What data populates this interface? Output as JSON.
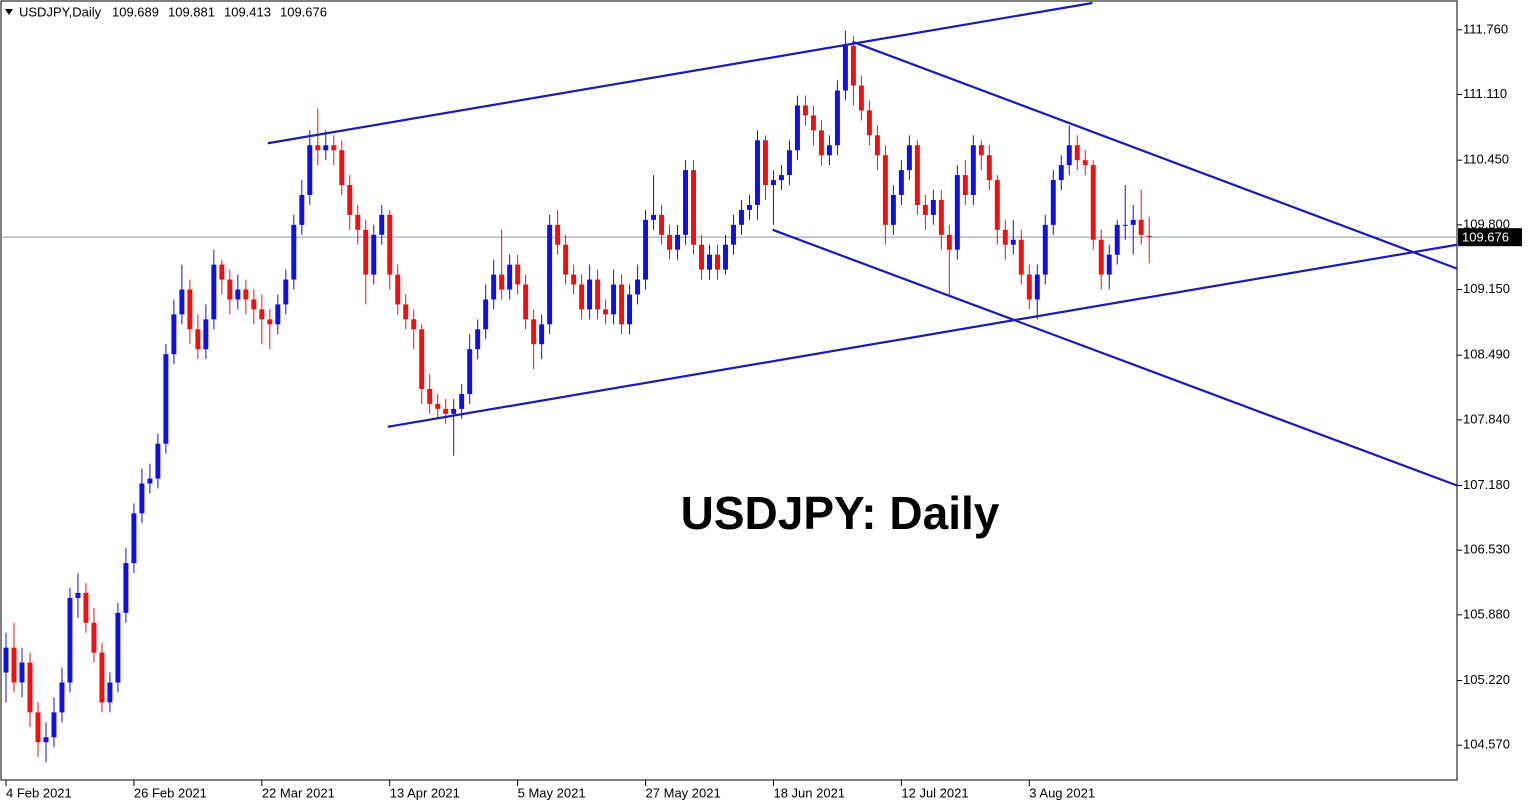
{
  "chart_data": {
    "type": "candlestick",
    "symbol": "USDJPY,Daily",
    "annotation": "USDJPY: Daily",
    "up_color": "#1111dd",
    "down_color": "#ee1111",
    "trendline_color": "#1a1ab4",
    "price_line_color": "#8a9aa6",
    "xlim": [
      -0.625,
      181.5
    ],
    "ylim": [
      104.22,
      112.06
    ],
    "xticks": [
      {
        "value": 0,
        "label": "4 Feb 2021"
      },
      {
        "value": 16,
        "label": "26 Feb 2021"
      },
      {
        "value": 32,
        "label": "22 Mar 2021"
      },
      {
        "value": 48,
        "label": "13 Apr 2021"
      },
      {
        "value": 64,
        "label": "5 May 2021"
      },
      {
        "value": 80,
        "label": "27 May 2021"
      },
      {
        "value": 96,
        "label": "18 Jun 2021"
      },
      {
        "value": 112,
        "label": "12 Jul 2021"
      },
      {
        "value": 128,
        "label": "3 Aug 2021"
      }
    ],
    "yticks": [
      {
        "value": 111.76,
        "label": "111.760"
      },
      {
        "value": 111.11,
        "label": "111.110"
      },
      {
        "value": 110.45,
        "label": "110.450"
      },
      {
        "value": 109.8,
        "label": "109.800"
      },
      {
        "value": 109.15,
        "label": "109.150"
      },
      {
        "value": 108.49,
        "label": "108.490"
      },
      {
        "value": 107.84,
        "label": "107.840"
      },
      {
        "value": 107.18,
        "label": "107.180"
      },
      {
        "value": 106.53,
        "label": "106.530"
      },
      {
        "value": 105.88,
        "label": "105.880"
      },
      {
        "value": 105.22,
        "label": "105.220"
      },
      {
        "value": 104.57,
        "label": "104.570"
      }
    ],
    "trendlines": [
      [
        [
          32.75,
          110.62
        ],
        [
          135.9,
          112.03
        ]
      ],
      [
        [
          47.75,
          107.77
        ],
        [
          181.5,
          109.6
        ]
      ],
      [
        [
          105.9,
          111.64
        ],
        [
          181.5,
          109.36
        ]
      ],
      [
        [
          95.9,
          109.75
        ],
        [
          181.5,
          107.18
        ]
      ]
    ],
    "candles": [
      [
        105.3,
        105.7,
        105.0,
        105.55
      ],
      [
        105.55,
        105.8,
        105.1,
        105.2
      ],
      [
        105.2,
        105.55,
        105.05,
        105.4
      ],
      [
        105.4,
        105.5,
        104.75,
        104.9
      ],
      [
        104.9,
        105.0,
        104.45,
        104.6
      ],
      [
        104.6,
        104.8,
        104.4,
        104.65
      ],
      [
        104.65,
        105.05,
        104.55,
        104.9
      ],
      [
        104.9,
        105.35,
        104.8,
        105.2
      ],
      [
        105.2,
        106.15,
        105.1,
        106.05
      ],
      [
        106.05,
        106.3,
        105.85,
        106.1
      ],
      [
        106.1,
        106.2,
        105.7,
        105.8
      ],
      [
        105.8,
        105.95,
        105.4,
        105.5
      ],
      [
        105.5,
        105.6,
        104.9,
        105.0
      ],
      [
        105.0,
        105.3,
        104.9,
        105.2
      ],
      [
        105.2,
        106.0,
        105.1,
        105.9
      ],
      [
        105.9,
        106.55,
        105.8,
        106.4
      ],
      [
        106.4,
        107.0,
        106.3,
        106.9
      ],
      [
        106.9,
        107.35,
        106.8,
        107.2
      ],
      [
        107.2,
        107.4,
        107.1,
        107.25
      ],
      [
        107.25,
        107.7,
        107.15,
        107.6
      ],
      [
        107.6,
        108.6,
        107.5,
        108.5
      ],
      [
        108.5,
        109.05,
        108.4,
        108.9
      ],
      [
        108.9,
        109.4,
        108.8,
        109.15
      ],
      [
        109.15,
        109.25,
        108.6,
        108.75
      ],
      [
        108.75,
        108.9,
        108.45,
        108.55
      ],
      [
        108.55,
        109.0,
        108.45,
        108.85
      ],
      [
        108.85,
        109.55,
        108.75,
        109.4
      ],
      [
        109.4,
        109.45,
        109.1,
        109.25
      ],
      [
        109.25,
        109.35,
        108.9,
        109.05
      ],
      [
        109.05,
        109.3,
        108.95,
        109.15
      ],
      [
        109.15,
        109.25,
        108.9,
        109.05
      ],
      [
        109.05,
        109.15,
        108.8,
        108.95
      ],
      [
        108.95,
        109.1,
        108.6,
        108.85
      ],
      [
        108.85,
        108.95,
        108.55,
        108.8
      ],
      [
        108.8,
        109.1,
        108.7,
        109.0
      ],
      [
        109.0,
        109.35,
        108.9,
        109.25
      ],
      [
        109.25,
        109.9,
        109.15,
        109.8
      ],
      [
        109.8,
        110.25,
        109.7,
        110.1
      ],
      [
        110.1,
        110.75,
        110.0,
        110.6
      ],
      [
        110.6,
        110.97,
        110.4,
        110.55
      ],
      [
        110.55,
        110.75,
        110.45,
        110.6
      ],
      [
        110.6,
        110.7,
        110.4,
        110.55
      ],
      [
        110.55,
        110.65,
        110.1,
        110.2
      ],
      [
        110.2,
        110.3,
        109.75,
        109.9
      ],
      [
        109.9,
        110.0,
        109.6,
        109.75
      ],
      [
        109.75,
        109.85,
        109.0,
        109.3
      ],
      [
        109.3,
        109.8,
        109.2,
        109.7
      ],
      [
        109.7,
        110.0,
        109.6,
        109.9
      ],
      [
        109.9,
        109.95,
        109.15,
        109.3
      ],
      [
        109.3,
        109.4,
        108.9,
        109.0
      ],
      [
        109.0,
        109.1,
        108.75,
        108.85
      ],
      [
        108.85,
        108.95,
        108.55,
        108.75
      ],
      [
        108.75,
        108.8,
        108.0,
        108.15
      ],
      [
        108.15,
        108.3,
        107.9,
        108.0
      ],
      [
        108.0,
        108.1,
        107.85,
        107.95
      ],
      [
        107.95,
        108.05,
        107.8,
        107.9
      ],
      [
        107.9,
        108.05,
        107.48,
        107.95
      ],
      [
        107.95,
        108.2,
        107.85,
        108.1
      ],
      [
        108.1,
        108.7,
        108.0,
        108.55
      ],
      [
        108.55,
        108.85,
        108.45,
        108.75
      ],
      [
        108.75,
        109.2,
        108.65,
        109.05
      ],
      [
        109.05,
        109.45,
        108.95,
        109.3
      ],
      [
        109.3,
        109.75,
        109.05,
        109.15
      ],
      [
        109.15,
        109.5,
        109.05,
        109.4
      ],
      [
        109.4,
        109.5,
        109.1,
        109.2
      ],
      [
        109.2,
        109.3,
        108.75,
        108.85
      ],
      [
        108.85,
        108.95,
        108.35,
        108.6
      ],
      [
        108.6,
        108.9,
        108.45,
        108.8
      ],
      [
        108.8,
        109.9,
        108.7,
        109.8
      ],
      [
        109.8,
        109.95,
        109.5,
        109.6
      ],
      [
        109.6,
        109.7,
        109.2,
        109.3
      ],
      [
        109.3,
        109.4,
        109.1,
        109.2
      ],
      [
        109.2,
        109.3,
        108.85,
        108.95
      ],
      [
        108.95,
        109.4,
        108.85,
        109.25
      ],
      [
        109.25,
        109.35,
        108.85,
        108.95
      ],
      [
        108.95,
        109.05,
        108.8,
        108.9
      ],
      [
        108.9,
        109.35,
        108.8,
        109.2
      ],
      [
        109.2,
        109.3,
        108.7,
        108.8
      ],
      [
        108.8,
        109.2,
        108.7,
        109.1
      ],
      [
        109.1,
        109.4,
        109.0,
        109.25
      ],
      [
        109.25,
        109.95,
        109.15,
        109.85
      ],
      [
        109.85,
        110.3,
        109.75,
        109.9
      ],
      [
        109.9,
        110.0,
        109.6,
        109.7
      ],
      [
        109.7,
        109.8,
        109.45,
        109.55
      ],
      [
        109.55,
        109.8,
        109.45,
        109.7
      ],
      [
        109.7,
        110.45,
        109.6,
        110.35
      ],
      [
        110.35,
        110.45,
        109.5,
        109.6
      ],
      [
        109.6,
        109.7,
        109.25,
        109.35
      ],
      [
        109.35,
        109.6,
        109.25,
        109.5
      ],
      [
        109.5,
        109.6,
        109.25,
        109.35
      ],
      [
        109.35,
        109.7,
        109.3,
        109.6
      ],
      [
        109.6,
        109.9,
        109.5,
        109.8
      ],
      [
        109.8,
        110.05,
        109.7,
        109.95
      ],
      [
        109.95,
        110.1,
        109.85,
        110.0
      ],
      [
        110.0,
        110.75,
        109.85,
        110.65
      ],
      [
        110.65,
        110.7,
        110.05,
        110.2
      ],
      [
        110.2,
        110.35,
        109.8,
        110.25
      ],
      [
        110.25,
        110.4,
        110.15,
        110.3
      ],
      [
        110.3,
        110.65,
        110.2,
        110.55
      ],
      [
        110.55,
        111.1,
        110.45,
        111.0
      ],
      [
        111.0,
        111.1,
        110.8,
        110.9
      ],
      [
        110.9,
        111.0,
        110.6,
        110.75
      ],
      [
        110.75,
        110.85,
        110.4,
        110.5
      ],
      [
        110.5,
        110.7,
        110.4,
        110.6
      ],
      [
        110.6,
        111.25,
        110.5,
        111.15
      ],
      [
        111.15,
        111.75,
        111.05,
        111.6
      ],
      [
        111.6,
        111.7,
        111.0,
        111.2
      ],
      [
        111.2,
        111.3,
        110.85,
        110.95
      ],
      [
        110.95,
        111.05,
        110.6,
        110.7
      ],
      [
        110.7,
        110.8,
        110.35,
        110.5
      ],
      [
        110.5,
        110.6,
        109.6,
        109.8
      ],
      [
        109.8,
        110.2,
        109.7,
        110.1
      ],
      [
        110.1,
        110.45,
        110.0,
        110.35
      ],
      [
        110.35,
        110.7,
        110.25,
        110.6
      ],
      [
        110.6,
        110.65,
        109.9,
        110.0
      ],
      [
        110.0,
        110.1,
        109.75,
        109.9
      ],
      [
        109.9,
        110.15,
        109.8,
        110.05
      ],
      [
        110.05,
        110.15,
        109.55,
        109.7
      ],
      [
        109.7,
        109.8,
        109.1,
        109.55
      ],
      [
        109.55,
        110.4,
        109.45,
        110.3
      ],
      [
        110.3,
        110.45,
        110.0,
        110.1
      ],
      [
        110.1,
        110.7,
        110.0,
        110.6
      ],
      [
        110.6,
        110.65,
        110.35,
        110.5
      ],
      [
        110.5,
        110.6,
        110.15,
        110.25
      ],
      [
        110.25,
        110.3,
        109.6,
        109.75
      ],
      [
        109.75,
        109.85,
        109.45,
        109.6
      ],
      [
        109.6,
        109.85,
        109.5,
        109.65
      ],
      [
        109.65,
        109.75,
        109.2,
        109.3
      ],
      [
        109.3,
        109.4,
        108.95,
        109.05
      ],
      [
        109.05,
        109.4,
        108.85,
        109.3
      ],
      [
        109.3,
        109.9,
        109.2,
        109.8
      ],
      [
        109.8,
        110.35,
        109.7,
        110.25
      ],
      [
        110.25,
        110.5,
        110.15,
        110.4
      ],
      [
        110.4,
        110.8,
        110.3,
        110.6
      ],
      [
        110.6,
        110.7,
        110.35,
        110.45
      ],
      [
        110.45,
        110.55,
        110.3,
        110.4
      ],
      [
        110.4,
        110.45,
        109.55,
        109.65
      ],
      [
        109.65,
        109.75,
        109.15,
        109.3
      ],
      [
        109.3,
        109.6,
        109.15,
        109.5
      ],
      [
        109.5,
        109.85,
        109.4,
        109.8
      ],
      [
        109.8,
        110.2,
        109.65,
        109.8
      ],
      [
        109.8,
        110.0,
        109.5,
        109.85
      ],
      [
        109.85,
        110.15,
        109.6,
        109.7
      ],
      [
        109.689,
        109.881,
        109.413,
        109.676
      ]
    ]
  }
}
